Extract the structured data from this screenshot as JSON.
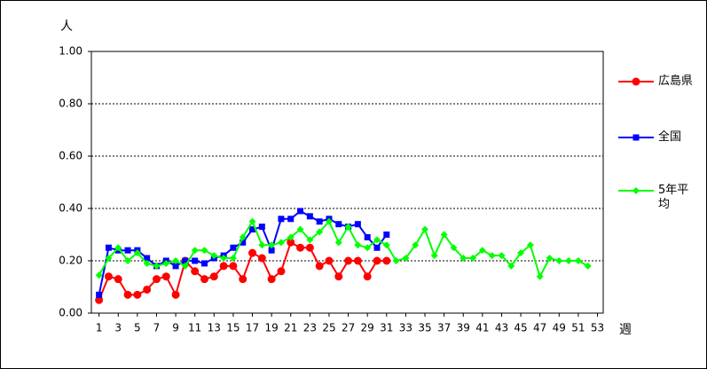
{
  "chart_data": {
    "type": "line",
    "y_label": "人",
    "x_label": "週",
    "x": [
      1,
      2,
      3,
      4,
      5,
      6,
      7,
      8,
      9,
      10,
      11,
      12,
      13,
      14,
      15,
      16,
      17,
      18,
      19,
      20,
      21,
      22,
      23,
      24,
      25,
      26,
      27,
      28,
      29,
      30,
      31,
      32,
      33,
      34,
      35,
      36,
      37,
      38,
      39,
      40,
      41,
      42,
      43,
      44,
      45,
      46,
      47,
      48,
      49,
      50,
      51,
      52
    ],
    "xlim": [
      0.2,
      53.6
    ],
    "xticks": [
      1,
      3,
      5,
      7,
      9,
      11,
      13,
      15,
      17,
      19,
      21,
      23,
      25,
      27,
      29,
      31,
      33,
      35,
      37,
      39,
      41,
      43,
      45,
      47,
      49,
      51,
      53
    ],
    "ylim": [
      0,
      1
    ],
    "yticks": [
      {
        "value": 0,
        "label": "0.00"
      },
      {
        "value": 0.2,
        "label": "0.20"
      },
      {
        "value": 0.4,
        "label": "0.40"
      },
      {
        "value": 0.6,
        "label": "0.60"
      },
      {
        "value": 0.8,
        "label": "0.80"
      },
      {
        "value": 1,
        "label": "1.00"
      }
    ],
    "grid": true,
    "series": [
      {
        "name": "広島県",
        "color": "#ff0000",
        "marker": "circle",
        "values": [
          0.05,
          0.14,
          0.13,
          0.07,
          0.07,
          0.09,
          0.13,
          0.14,
          0.07,
          0.2,
          0.16,
          0.13,
          0.14,
          0.18,
          0.18,
          0.13,
          0.23,
          0.21,
          0.13,
          0.16,
          0.27,
          0.25,
          0.25,
          0.18,
          0.2,
          0.14,
          0.2,
          0.2,
          0.14,
          0.2,
          0.2,
          null,
          null,
          null,
          null,
          null,
          null,
          null,
          null,
          null,
          null,
          null,
          null,
          null,
          null,
          null,
          null,
          null,
          null,
          null,
          null,
          null
        ]
      },
      {
        "name": "全国",
        "color": "#0000ff",
        "marker": "square",
        "values": [
          0.07,
          0.25,
          0.24,
          0.24,
          0.24,
          0.21,
          0.18,
          0.2,
          0.18,
          0.2,
          0.2,
          0.19,
          0.21,
          0.22,
          0.25,
          0.27,
          0.32,
          0.33,
          0.24,
          0.36,
          0.36,
          0.39,
          0.37,
          0.35,
          0.36,
          0.34,
          0.33,
          0.34,
          0.29,
          0.25,
          0.3,
          null,
          null,
          null,
          null,
          null,
          null,
          null,
          null,
          null,
          null,
          null,
          null,
          null,
          null,
          null,
          null,
          null,
          null,
          null,
          null,
          null
        ]
      },
      {
        "name": "5年平均",
        "color": "#00ff00",
        "marker": "diamond",
        "values": [
          0.145,
          0.21,
          0.25,
          0.2,
          0.23,
          0.19,
          0.18,
          0.19,
          0.2,
          0.18,
          0.24,
          0.24,
          0.22,
          0.21,
          0.21,
          0.29,
          0.35,
          0.26,
          0.26,
          0.27,
          0.29,
          0.32,
          0.28,
          0.31,
          0.35,
          0.27,
          0.33,
          0.26,
          0.25,
          0.28,
          0.26,
          0.2,
          0.21,
          0.26,
          0.32,
          0.22,
          0.3,
          0.25,
          0.21,
          0.21,
          0.24,
          0.22,
          0.22,
          0.18,
          0.23,
          0.26,
          0.14,
          0.21,
          0.2,
          0.2,
          0.2,
          0.18
        ]
      }
    ]
  }
}
